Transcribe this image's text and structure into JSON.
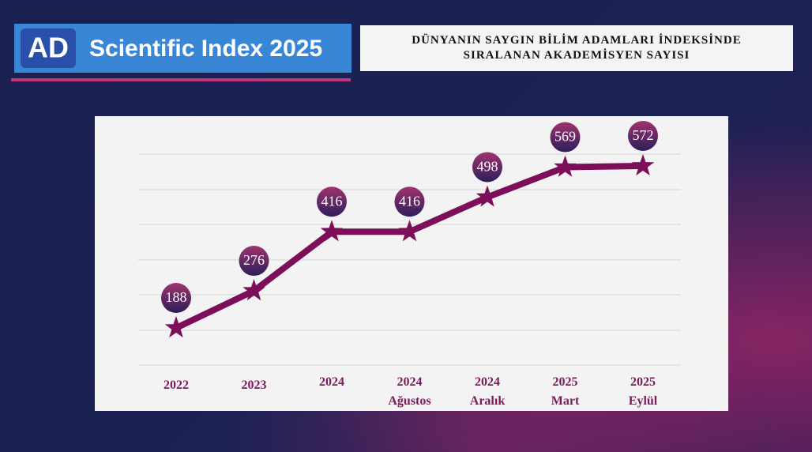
{
  "logo": {
    "badge": "AD",
    "name": "Scientific Index 2025"
  },
  "chart_data": {
    "type": "line",
    "title": "DÜNYANIN SAYGIN BİLİM ADAMLARI İNDEKSİNDE\nSIRALANAN AKADEMİSYEN SAYISI",
    "categories": [
      "2022",
      "2023",
      "2024",
      "2024\nAğustos",
      "2024\nAralık",
      "2025\nMart",
      "2025\nEylül"
    ],
    "values": [
      188,
      276,
      416,
      416,
      498,
      569,
      572
    ],
    "color": "#7d0f5a",
    "ylim": [
      100,
      600
    ]
  }
}
